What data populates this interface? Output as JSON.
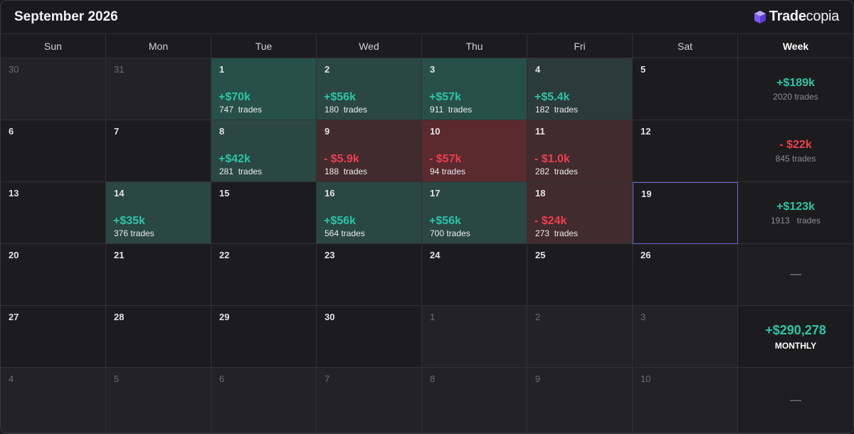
{
  "header": {
    "title": "September 2026",
    "brand_bold": "Trade",
    "brand_light": "copia",
    "brand_icon": "cube-icon"
  },
  "weekdays": [
    "Sun",
    "Mon",
    "Tue",
    "Wed",
    "Thu",
    "Fri",
    "Sat",
    "Week"
  ],
  "weeks": [
    {
      "days": [
        {
          "day": "30",
          "other": true
        },
        {
          "day": "31",
          "other": true
        },
        {
          "day": "1",
          "pnl": "+$70k",
          "trades": "747  trades",
          "tone": "pos"
        },
        {
          "day": "2",
          "pnl": "+$56k",
          "trades": "180  trades",
          "tone": "pos-mid"
        },
        {
          "day": "3",
          "pnl": "+$57k",
          "trades": "911  trades",
          "tone": "pos"
        },
        {
          "day": "4",
          "pnl": "+$5.4k",
          "trades": "182  trades",
          "tone": "pos-dim"
        },
        {
          "day": "5"
        }
      ],
      "summary": {
        "pnl": "+$189k",
        "trades": "2020 trades",
        "tone": "up"
      }
    },
    {
      "days": [
        {
          "day": "6"
        },
        {
          "day": "7"
        },
        {
          "day": "8",
          "pnl": "+$42k",
          "trades": "281  trades",
          "tone": "pos-mid"
        },
        {
          "day": "9",
          "pnl": "- $5.9k",
          "trades": "188  trades",
          "tone": "neg-dim"
        },
        {
          "day": "10",
          "pnl": "- $57k",
          "trades": "94 trades",
          "tone": "neg"
        },
        {
          "day": "11",
          "pnl": "- $1.0k",
          "trades": "282  trades",
          "tone": "neg-dim"
        },
        {
          "day": "12"
        }
      ],
      "summary": {
        "pnl": "- $22k",
        "trades": "845 trades",
        "tone": "down"
      }
    },
    {
      "days": [
        {
          "day": "13"
        },
        {
          "day": "14",
          "pnl": "+$35k",
          "trades": "376 trades",
          "tone": "pos-mid"
        },
        {
          "day": "15"
        },
        {
          "day": "16",
          "pnl": "+$56k",
          "trades": "564 trades",
          "tone": "pos-mid"
        },
        {
          "day": "17",
          "pnl": "+$56k",
          "trades": "700 trades",
          "tone": "pos-mid"
        },
        {
          "day": "18",
          "pnl": "- $24k",
          "trades": "273  trades",
          "tone": "neg-dim"
        },
        {
          "day": "19",
          "today": true
        }
      ],
      "summary": {
        "pnl": "+$123k",
        "trades": "1913   trades",
        "tone": "up"
      }
    },
    {
      "days": [
        {
          "day": "20"
        },
        {
          "day": "21"
        },
        {
          "day": "22"
        },
        {
          "day": "23"
        },
        {
          "day": "24"
        },
        {
          "day": "25"
        },
        {
          "day": "26"
        }
      ],
      "summary": {
        "dash": "—"
      }
    },
    {
      "days": [
        {
          "day": "27"
        },
        {
          "day": "28"
        },
        {
          "day": "29"
        },
        {
          "day": "30"
        },
        {
          "day": "1",
          "other": true
        },
        {
          "day": "2",
          "other": true
        },
        {
          "day": "3",
          "other": true
        }
      ],
      "summary": {
        "monthly_value": "+$290,278",
        "monthly_label": "MONTHLY"
      }
    },
    {
      "days": [
        {
          "day": "4",
          "other": true
        },
        {
          "day": "5",
          "other": true
        },
        {
          "day": "6",
          "other": true
        },
        {
          "day": "7",
          "other": true
        },
        {
          "day": "8",
          "other": true
        },
        {
          "day": "9",
          "other": true
        },
        {
          "day": "10",
          "other": true
        }
      ],
      "summary": {
        "dash": "—"
      }
    }
  ],
  "colors": {
    "positive": "#2ec4a6",
    "negative": "#ec3f4f",
    "today_border": "#6c65d8",
    "background": "#1c1c1e"
  }
}
